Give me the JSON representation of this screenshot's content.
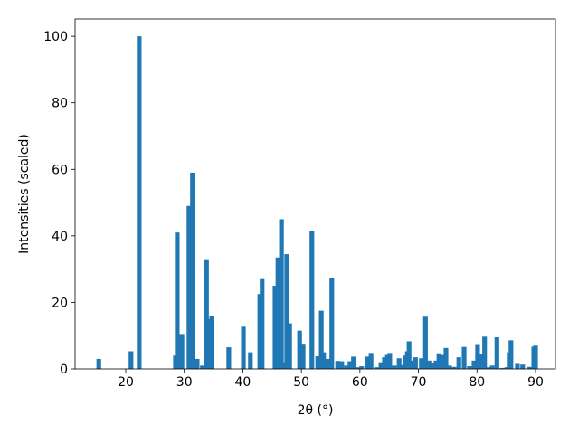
{
  "chart_data": {
    "type": "bar",
    "color": "#1f77b4",
    "x_label": "2θ (°)",
    "y_label": "Intensities (scaled)",
    "x": [
      15.4,
      20.9,
      22.3,
      28.5,
      28.8,
      29.6,
      30.8,
      31.4,
      32.2,
      33.1,
      33.8,
      34.2,
      34.7,
      37.6,
      40.1,
      41.3,
      42.9,
      43.3,
      45.5,
      46.0,
      46.6,
      47.2,
      47.5,
      48.0,
      49.7,
      50.3,
      51.8,
      52.8,
      53.4,
      53.8,
      54.5,
      55.2,
      56.2,
      56.9,
      57.7,
      58.3,
      58.9,
      59.7,
      60.3,
      61.3,
      61.9,
      62.8,
      63.6,
      64.2,
      64.7,
      65.1,
      65.9,
      66.7,
      67.4,
      67.8,
      68.1,
      68.4,
      69.0,
      69.5,
      70.5,
      71.2,
      71.8,
      72.4,
      73.0,
      73.5,
      74.1,
      74.7,
      75.3,
      76.1,
      76.9,
      77.8,
      78.7,
      79.5,
      80.1,
      80.7,
      81.3,
      82.0,
      82.6,
      83.4,
      84.3,
      85.1,
      85.5,
      85.8,
      86.9,
      87.8,
      88.9,
      89.7,
      90.0
    ],
    "values": [
      3,
      5.3,
      100,
      4,
      41,
      10.5,
      49,
      59,
      3,
      1,
      32.7,
      15,
      16,
      6.5,
      12.7,
      5,
      22.5,
      27,
      25,
      33.5,
      45,
      2,
      34.5,
      13.7,
      11.5,
      7.3,
      41.5,
      3.8,
      17.5,
      5,
      3,
      27.3,
      2.4,
      2.3,
      1,
      2.3,
      3.7,
      0.5,
      0.8,
      3.7,
      4.8,
      0.5,
      2,
      3.5,
      4.2,
      4.8,
      1,
      3.2,
      1.2,
      4,
      5.3,
      8.3,
      2.5,
      3.5,
      3.2,
      15.7,
      2.5,
      1.8,
      2.5,
      4.7,
      4.2,
      6.3,
      1,
      0.6,
      3.5,
      6.6,
      0.8,
      2.5,
      7.2,
      4.5,
      9.7,
      0.5,
      1,
      9.5,
      0.3,
      0.5,
      5,
      8.6,
      1.5,
      1.3,
      0.6,
      6.7,
      7
    ],
    "xlim": [
      11.35,
      93.4
    ],
    "ylim": [
      0,
      105.2
    ],
    "xticks": [
      20,
      30,
      40,
      50,
      60,
      70,
      80,
      90
    ],
    "yticks": [
      0,
      20,
      40,
      60,
      80,
      100
    ]
  }
}
